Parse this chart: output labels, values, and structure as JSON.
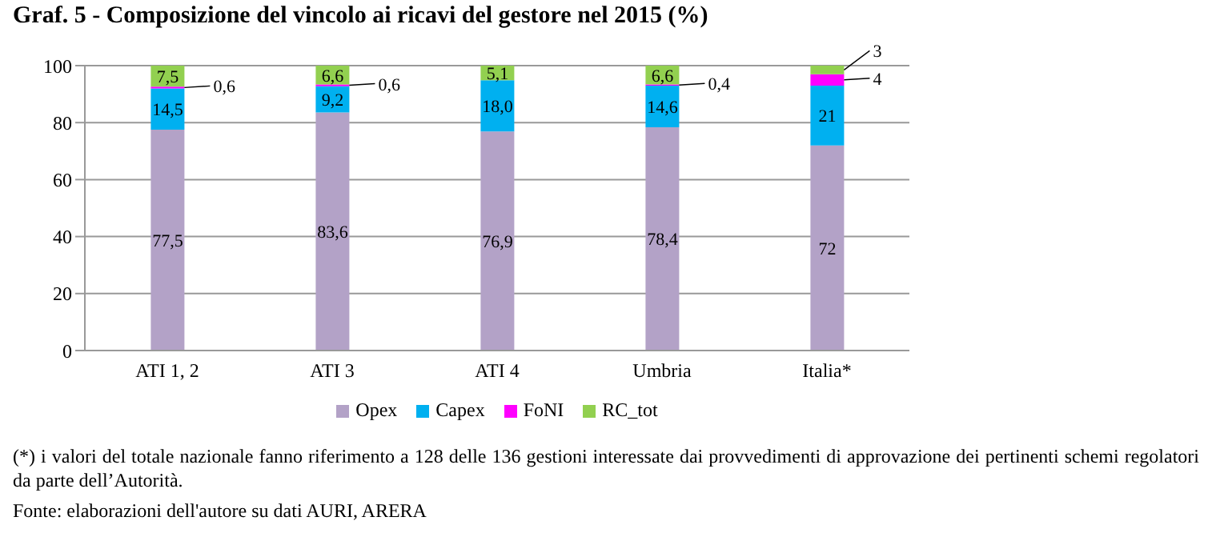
{
  "chart_data": {
    "type": "bar",
    "title": "Graf. 5 - Composizione del vincolo ai ricavi del gestore nel 2015 (%)",
    "stacked": true,
    "categories": [
      "ATI 1, 2",
      "ATI 3",
      "ATI 4",
      "Umbria",
      "Italia*"
    ],
    "series": [
      {
        "name": "Opex",
        "color": "#b3a2c7",
        "values": [
          77.5,
          83.6,
          76.9,
          78.4,
          72
        ],
        "value_labels": [
          "77,5",
          "83,6",
          "76,9",
          "78,4",
          "72"
        ]
      },
      {
        "name": "Capex",
        "color": "#00b0f0",
        "values": [
          14.5,
          9.2,
          18.0,
          14.6,
          21
        ],
        "value_labels": [
          "14,5",
          "9,2",
          "18,0",
          "14,6",
          "21"
        ]
      },
      {
        "name": "FoNI",
        "color": "#ff00ff",
        "values": [
          0.6,
          0.6,
          0,
          0.4,
          4
        ],
        "value_labels": [
          "0,6",
          "0,6",
          null,
          "0,4",
          "4"
        ]
      },
      {
        "name": "RC_tot",
        "color": "#92d050",
        "values": [
          7.5,
          6.6,
          5.1,
          6.6,
          3
        ],
        "value_labels": [
          "7,5",
          "6,6",
          "5,1",
          "6,6",
          "3"
        ]
      }
    ],
    "ylim": [
      0,
      100
    ],
    "yticks": [
      0,
      20,
      40,
      60,
      80,
      100
    ],
    "grid": "y",
    "legend": "bottom",
    "annotations": [
      "(*) i valori del totale nazionale fanno riferimento a 128 delle 136 gestioni interessate dai provvedimenti di approvazione dei pertinenti schemi regolatori da parte dell’Autorità.",
      "Fonte: elaborazioni dell'autore su dati AURI, ARERA"
    ]
  }
}
